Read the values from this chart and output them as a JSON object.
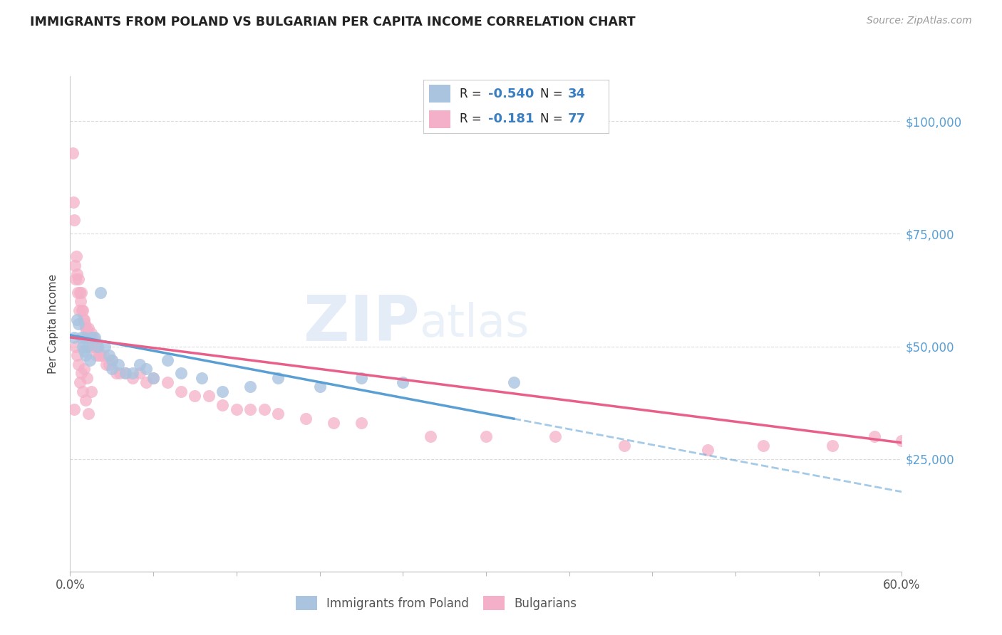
{
  "title": "IMMIGRANTS FROM POLAND VS BULGARIAN PER CAPITA INCOME CORRELATION CHART",
  "source": "Source: ZipAtlas.com",
  "ylabel": "Per Capita Income",
  "y_ticks": [
    0,
    25000,
    50000,
    75000,
    100000
  ],
  "x_min": 0.0,
  "x_max": 60.0,
  "y_min": 0,
  "y_max": 110000,
  "poland_R": -0.54,
  "poland_N": 34,
  "bulgarian_R": -0.181,
  "bulgarian_N": 77,
  "poland_color": "#aac4e0",
  "bulgarian_color": "#f4b0c8",
  "trend_poland_color": "#5a9fd4",
  "trend_bulgarian_color": "#e8608a",
  "watermark_zip": "ZIP",
  "watermark_atlas": "atlas",
  "background_color": "#ffffff",
  "grid_color": "#d8d8d8",
  "right_axis_color": "#5a9fd4",
  "poland_x": [
    0.3,
    0.5,
    0.6,
    0.8,
    0.9,
    1.0,
    1.0,
    1.1,
    1.2,
    1.4,
    1.5,
    1.8,
    2.0,
    2.2,
    2.5,
    2.8,
    3.0,
    3.0,
    3.5,
    4.0,
    4.5,
    5.0,
    5.5,
    6.0,
    7.0,
    8.0,
    9.5,
    11.0,
    13.0,
    15.0,
    18.0,
    21.0,
    24.0,
    32.0
  ],
  "poland_y": [
    52000,
    56000,
    55000,
    52000,
    50000,
    52000,
    49000,
    48000,
    50000,
    47000,
    52000,
    52000,
    50000,
    62000,
    50000,
    48000,
    45000,
    47000,
    46000,
    44000,
    44000,
    46000,
    45000,
    43000,
    47000,
    44000,
    43000,
    40000,
    41000,
    43000,
    41000,
    43000,
    42000,
    42000
  ],
  "bulgarian_x": [
    0.2,
    0.25,
    0.3,
    0.35,
    0.4,
    0.45,
    0.5,
    0.55,
    0.6,
    0.65,
    0.7,
    0.75,
    0.8,
    0.85,
    0.9,
    0.95,
    1.0,
    1.05,
    1.1,
    1.15,
    1.2,
    1.25,
    1.3,
    1.35,
    1.4,
    1.5,
    1.6,
    1.7,
    1.8,
    1.9,
    2.0,
    2.1,
    2.2,
    2.4,
    2.6,
    2.8,
    3.0,
    3.3,
    3.6,
    4.0,
    4.5,
    5.0,
    5.5,
    6.0,
    7.0,
    8.0,
    9.0,
    10.0,
    11.0,
    12.0,
    13.0,
    14.0,
    15.0,
    17.0,
    19.0,
    21.0,
    26.0,
    30.0,
    35.0,
    40.0,
    46.0,
    50.0,
    55.0,
    58.0,
    60.0,
    1.5,
    0.6,
    0.8,
    1.0,
    1.2,
    0.7,
    0.5,
    0.9,
    1.1,
    0.4,
    0.3,
    1.3
  ],
  "bulgarian_y": [
    93000,
    82000,
    78000,
    68000,
    65000,
    70000,
    66000,
    62000,
    65000,
    58000,
    62000,
    60000,
    62000,
    58000,
    58000,
    56000,
    56000,
    55000,
    54000,
    54000,
    52000,
    53000,
    54000,
    52000,
    52000,
    53000,
    50000,
    52000,
    50000,
    48000,
    50000,
    48000,
    48000,
    48000,
    46000,
    46000,
    47000,
    44000,
    44000,
    44000,
    43000,
    44000,
    42000,
    43000,
    42000,
    40000,
    39000,
    39000,
    37000,
    36000,
    36000,
    36000,
    35000,
    34000,
    33000,
    33000,
    30000,
    30000,
    30000,
    28000,
    27000,
    28000,
    28000,
    30000,
    29000,
    40000,
    46000,
    44000,
    45000,
    43000,
    42000,
    48000,
    40000,
    38000,
    50000,
    36000,
    35000
  ]
}
